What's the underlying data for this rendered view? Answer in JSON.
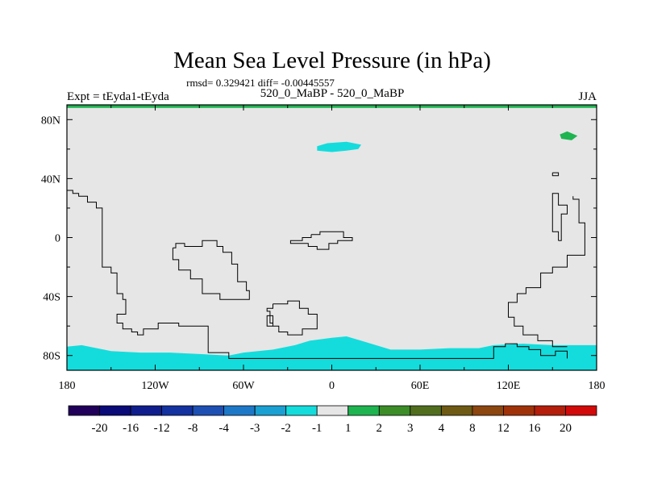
{
  "chart_data": {
    "type": "heatmap",
    "title": "Mean Sea Level Pressure (in hPa)",
    "stats_line": "rmsd= 0.329421 diff= -0.00445557",
    "left_label": "Expt = tEyda1-tEyda",
    "center_label": "520_0_MaBP - 520_0_MaBP",
    "right_label": "JJA",
    "x_axis": {
      "range": [
        -180,
        180
      ],
      "ticks": [
        -180,
        -120,
        -60,
        0,
        60,
        120,
        180
      ],
      "tick_labels": [
        "180",
        "120W",
        "60W",
        "0",
        "60E",
        "120E",
        "180"
      ]
    },
    "y_axis": {
      "range": [
        -90,
        90
      ],
      "ticks": [
        80,
        40,
        0,
        -40,
        -80
      ],
      "tick_labels": [
        "80N",
        "40N",
        "0",
        "40S",
        "80S"
      ]
    },
    "colorbar": {
      "labels": [
        "-20",
        "-16",
        "-12",
        "-8",
        "-4",
        "-3",
        "-2",
        "-1",
        "1",
        "2",
        "3",
        "4",
        "8",
        "12",
        "16",
        "20"
      ],
      "colors": [
        "#20005a",
        "#0a0a78",
        "#0f1e8c",
        "#1432a0",
        "#1e50b4",
        "#1e78c8",
        "#1aa0d2",
        "#14dcdc",
        "#e6e6e6",
        "#1eb450",
        "#3c8c28",
        "#506e1e",
        "#6e5a14",
        "#8c460f",
        "#a0320a",
        "#b41e0a",
        "#d20a0a"
      ]
    },
    "background_color": "#e6e6e6",
    "anomaly_regions": [
      {
        "name": "arctic-cyan-blob",
        "class": "-2 to -1",
        "color": "#14dcdc",
        "lonlat": [
          [
            -10,
            62
          ],
          [
            -3,
            64
          ],
          [
            10,
            65
          ],
          [
            20,
            63
          ],
          [
            18,
            60
          ],
          [
            10,
            59
          ],
          [
            0,
            58
          ],
          [
            -10,
            59
          ]
        ]
      },
      {
        "name": "arctic-green-blob",
        "class": "1 to 2",
        "color": "#1eb450",
        "lonlat": [
          [
            155,
            70
          ],
          [
            160,
            72
          ],
          [
            167,
            69
          ],
          [
            163,
            66
          ],
          [
            156,
            67
          ]
        ]
      },
      {
        "name": "north-pole-green-strip",
        "class": "1 to 2",
        "color": "#1eb450",
        "lonlat": [
          [
            -180,
            90
          ],
          [
            180,
            90
          ],
          [
            180,
            88
          ],
          [
            -180,
            88
          ]
        ]
      },
      {
        "name": "antarctic-cyan-band",
        "class": "-2 to -1",
        "color": "#14dcdc",
        "lonlat": [
          [
            -180,
            -90
          ],
          [
            -180,
            -74
          ],
          [
            -170,
            -73
          ],
          [
            -150,
            -77
          ],
          [
            -130,
            -78
          ],
          [
            -110,
            -78
          ],
          [
            -90,
            -79
          ],
          [
            -70,
            -80
          ],
          [
            -60,
            -78
          ],
          [
            -40,
            -76
          ],
          [
            -25,
            -73
          ],
          [
            -15,
            -70
          ],
          [
            0,
            -68
          ],
          [
            10,
            -67
          ],
          [
            20,
            -70
          ],
          [
            40,
            -76
          ],
          [
            60,
            -76
          ],
          [
            80,
            -75
          ],
          [
            100,
            -75
          ],
          [
            110,
            -73
          ],
          [
            130,
            -72
          ],
          [
            150,
            -73
          ],
          [
            170,
            -73
          ],
          [
            180,
            -73
          ],
          [
            180,
            -90
          ]
        ]
      }
    ],
    "coastlines": [
      [
        [
          -180,
          32
        ],
        [
          -176,
          32
        ],
        [
          -176,
          30
        ],
        [
          -172,
          30
        ],
        [
          -172,
          28
        ],
        [
          -166,
          28
        ],
        [
          -166,
          24
        ],
        [
          -160,
          24
        ],
        [
          -160,
          20
        ],
        [
          -156,
          20
        ],
        [
          -156,
          -20
        ],
        [
          -150,
          -20
        ],
        [
          -150,
          -24
        ],
        [
          -146,
          -24
        ],
        [
          -146,
          -38
        ],
        [
          -142,
          -38
        ],
        [
          -142,
          -42
        ],
        [
          -140,
          -42
        ],
        [
          -140,
          -52
        ],
        [
          -146,
          -52
        ],
        [
          -146,
          -58
        ],
        [
          -142,
          -58
        ],
        [
          -142,
          -62
        ],
        [
          -136,
          -62
        ],
        [
          -136,
          -64
        ],
        [
          -132,
          -64
        ],
        [
          -132,
          -66
        ],
        [
          -128,
          -66
        ],
        [
          -128,
          -62
        ],
        [
          -118,
          -62
        ],
        [
          -118,
          -58
        ],
        [
          -104,
          -58
        ],
        [
          -104,
          -60
        ],
        [
          -84,
          -60
        ],
        [
          -84,
          -78
        ],
        [
          -70,
          -78
        ],
        [
          -70,
          -82
        ],
        [
          110,
          -82
        ],
        [
          110,
          -74
        ],
        [
          118,
          -74
        ],
        [
          118,
          -72
        ],
        [
          126,
          -72
        ],
        [
          126,
          -74
        ],
        [
          134,
          -74
        ],
        [
          134,
          -76
        ],
        [
          142,
          -76
        ],
        [
          142,
          -80
        ],
        [
          152,
          -80
        ],
        [
          152,
          -77
        ],
        [
          160,
          -77
        ],
        [
          160,
          -82
        ]
      ],
      [
        [
          -108,
          -7
        ],
        [
          -106,
          -7
        ],
        [
          -106,
          -4
        ],
        [
          -100,
          -4
        ],
        [
          -100,
          -6
        ],
        [
          -88,
          -6
        ],
        [
          -88,
          -2
        ],
        [
          -78,
          -2
        ],
        [
          -78,
          -6
        ],
        [
          -74,
          -6
        ],
        [
          -74,
          -10
        ],
        [
          -68,
          -10
        ],
        [
          -68,
          -18
        ],
        [
          -64,
          -18
        ],
        [
          -64,
          -30
        ],
        [
          -58,
          -30
        ],
        [
          -58,
          -36
        ],
        [
          -56,
          -36
        ],
        [
          -56,
          -42
        ],
        [
          -76,
          -42
        ],
        [
          -76,
          -38
        ],
        [
          -88,
          -38
        ],
        [
          -88,
          -28
        ],
        [
          -96,
          -28
        ],
        [
          -96,
          -22
        ],
        [
          -104,
          -22
        ],
        [
          -104,
          -15
        ],
        [
          -108,
          -15
        ],
        [
          -108,
          -7
        ]
      ],
      [
        [
          -40,
          -45
        ],
        [
          -30,
          -45
        ],
        [
          -30,
          -43
        ],
        [
          -22,
          -43
        ],
        [
          -22,
          -48
        ],
        [
          -16,
          -48
        ],
        [
          -16,
          -52
        ],
        [
          -10,
          -52
        ],
        [
          -10,
          -62
        ],
        [
          -20,
          -62
        ],
        [
          -20,
          -66
        ],
        [
          -30,
          -66
        ],
        [
          -30,
          -64
        ],
        [
          -36,
          -64
        ],
        [
          -36,
          -60
        ],
        [
          -40,
          -60
        ],
        [
          -40,
          -58
        ],
        [
          -42,
          -58
        ],
        [
          -42,
          -50
        ],
        [
          -44,
          -50
        ],
        [
          -44,
          -48
        ],
        [
          -40,
          -48
        ],
        [
          -40,
          -45
        ]
      ],
      [
        [
          -14,
          2
        ],
        [
          -8,
          2
        ],
        [
          -8,
          4
        ],
        [
          8,
          4
        ],
        [
          8,
          0
        ],
        [
          14,
          0
        ],
        [
          14,
          -2
        ],
        [
          4,
          -2
        ],
        [
          4,
          -4
        ],
        [
          -2,
          -4
        ],
        [
          -2,
          -8
        ],
        [
          -10,
          -8
        ],
        [
          -10,
          -6
        ],
        [
          -16,
          -6
        ],
        [
          -16,
          -4
        ],
        [
          -28,
          -4
        ],
        [
          -28,
          -2
        ],
        [
          -20,
          -2
        ],
        [
          -20,
          0
        ],
        [
          -14,
          0
        ],
        [
          -14,
          2
        ]
      ],
      [
        [
          -40,
          -58
        ],
        [
          -40,
          -53
        ],
        [
          -44,
          -53
        ],
        [
          -44,
          -60
        ],
        [
          -40,
          -60
        ]
      ],
      [
        [
          164,
          28
        ],
        [
          164,
          26
        ],
        [
          168,
          26
        ],
        [
          168,
          10
        ],
        [
          172,
          10
        ],
        [
          172,
          -12
        ],
        [
          160,
          -12
        ],
        [
          160,
          -20
        ],
        [
          150,
          -20
        ],
        [
          150,
          -24
        ],
        [
          142,
          -24
        ],
        [
          142,
          -34
        ],
        [
          132,
          -34
        ],
        [
          132,
          -38
        ],
        [
          126,
          -38
        ],
        [
          126,
          -44
        ],
        [
          120,
          -44
        ],
        [
          120,
          -54
        ],
        [
          124,
          -54
        ],
        [
          124,
          -60
        ],
        [
          130,
          -60
        ],
        [
          130,
          -66
        ],
        [
          140,
          -66
        ],
        [
          140,
          -70
        ],
        [
          150,
          -70
        ],
        [
          150,
          -74
        ],
        [
          160,
          -74
        ]
      ],
      [
        [
          154,
          -2
        ],
        [
          156,
          -2
        ],
        [
          156,
          16
        ],
        [
          160,
          16
        ],
        [
          160,
          22
        ],
        [
          154,
          22
        ],
        [
          154,
          30
        ],
        [
          150,
          30
        ],
        [
          150,
          4
        ],
        [
          154,
          4
        ],
        [
          154,
          -2
        ]
      ],
      [
        [
          150,
          44
        ],
        [
          154,
          44
        ],
        [
          154,
          42
        ],
        [
          150,
          42
        ],
        [
          150,
          44
        ]
      ]
    ]
  }
}
